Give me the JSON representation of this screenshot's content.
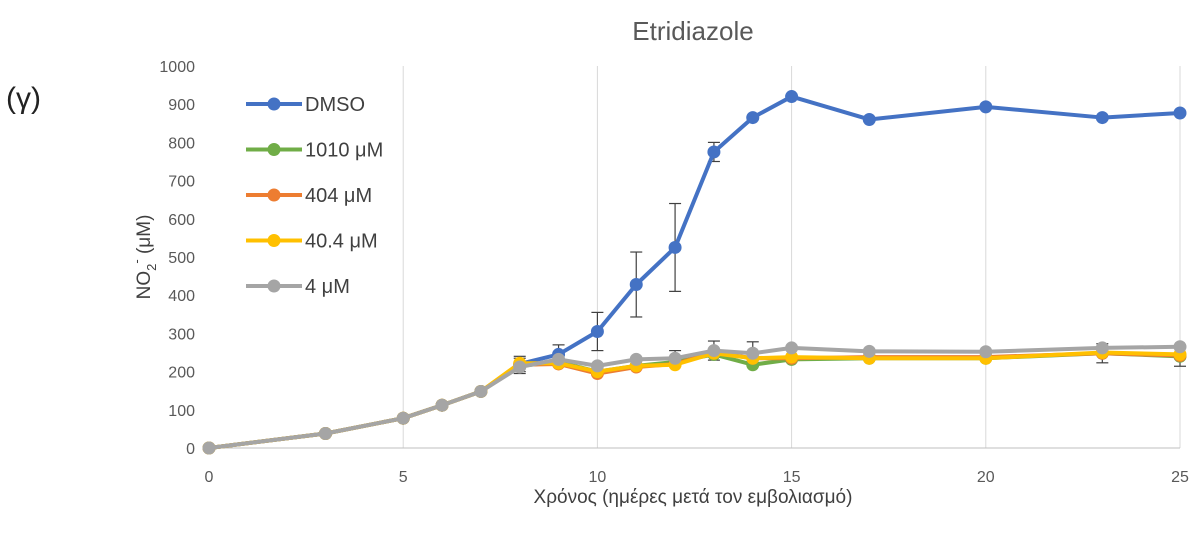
{
  "panel_label": "(γ)",
  "chart_data": {
    "type": "line",
    "title": "Etridiazole",
    "xlabel": "Χρόνος (ημέρες μετά τον εμβολιασμό)",
    "ylabel_parts": {
      "main": "NO",
      "sub": "2",
      "sup": "-",
      "unit": " (μM)"
    },
    "xlim": [
      0,
      25
    ],
    "ylim": [
      0,
      1000
    ],
    "xticks": [
      0,
      5,
      10,
      15,
      20,
      25
    ],
    "yticks": [
      0,
      100,
      200,
      300,
      400,
      500,
      600,
      700,
      800,
      900,
      1000
    ],
    "grid": "vertical",
    "legend_position": "top-left",
    "series": [
      {
        "name": "DMSO",
        "color": "#4472C4",
        "x": [
          0,
          3,
          5,
          6,
          7,
          8,
          9,
          10,
          11,
          12,
          13,
          14,
          15,
          17,
          20,
          23,
          25
        ],
        "y": [
          0,
          38,
          78,
          112,
          148,
          220,
          245,
          305,
          428,
          525,
          775,
          865,
          920,
          860,
          893,
          865,
          877
        ],
        "err": [
          0,
          0,
          0,
          0,
          0,
          20,
          25,
          50,
          85,
          115,
          25,
          0,
          0,
          0,
          0,
          0,
          0
        ]
      },
      {
        "name": "1010 μM",
        "color": "#70AD47",
        "x": [
          0,
          3,
          5,
          6,
          7,
          8,
          9,
          10,
          11,
          12,
          13,
          14,
          15,
          17,
          20,
          23,
          25
        ],
        "y": [
          0,
          38,
          78,
          112,
          148,
          215,
          225,
          200,
          215,
          225,
          245,
          218,
          232,
          235,
          235,
          248,
          240
        ],
        "err": [
          0,
          0,
          0,
          0,
          0,
          20,
          0,
          0,
          0,
          0,
          0,
          0,
          0,
          0,
          0,
          0,
          0
        ]
      },
      {
        "name": "404 μM",
        "color": "#ED7D31",
        "x": [
          0,
          3,
          5,
          6,
          7,
          8,
          9,
          10,
          11,
          12,
          13,
          14,
          15,
          17,
          20,
          23,
          25
        ],
        "y": [
          0,
          38,
          78,
          112,
          148,
          218,
          220,
          195,
          212,
          220,
          250,
          235,
          235,
          238,
          238,
          248,
          242
        ],
        "err": [
          0,
          0,
          0,
          0,
          0,
          0,
          0,
          0,
          0,
          0,
          0,
          0,
          0,
          0,
          0,
          25,
          28
        ]
      },
      {
        "name": "40.4 μM",
        "color": "#FFC000",
        "x": [
          0,
          3,
          5,
          6,
          7,
          8,
          9,
          10,
          11,
          12,
          13,
          14,
          15,
          17,
          20,
          23,
          25
        ],
        "y": [
          0,
          38,
          78,
          112,
          148,
          222,
          222,
          200,
          215,
          218,
          248,
          235,
          238,
          235,
          235,
          250,
          245
        ],
        "err": [
          0,
          0,
          0,
          0,
          0,
          0,
          0,
          0,
          0,
          0,
          0,
          0,
          0,
          0,
          0,
          0,
          0
        ]
      },
      {
        "name": "4 μM",
        "color": "#A5A5A5",
        "x": [
          0,
          3,
          5,
          6,
          7,
          8,
          9,
          10,
          11,
          12,
          13,
          14,
          15,
          17,
          20,
          23,
          25
        ],
        "y": [
          0,
          38,
          78,
          112,
          148,
          212,
          232,
          215,
          232,
          235,
          255,
          248,
          262,
          253,
          252,
          262,
          265
        ],
        "err": [
          0,
          0,
          0,
          0,
          0,
          0,
          0,
          0,
          0,
          20,
          25,
          30,
          0,
          0,
          0,
          0,
          0
        ]
      }
    ]
  }
}
